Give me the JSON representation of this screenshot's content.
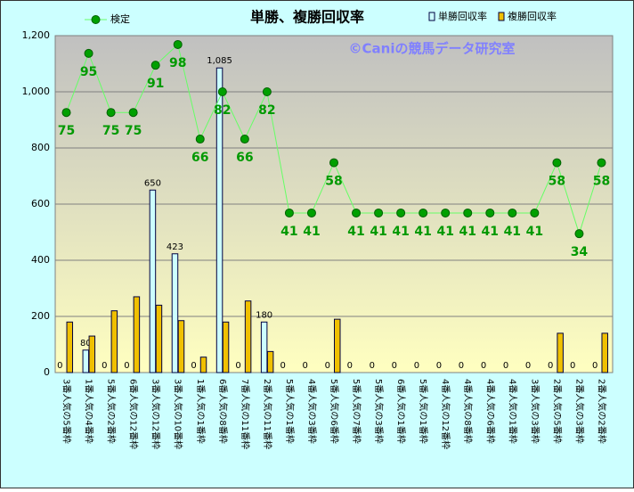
{
  "chart_data": {
    "type": "bar",
    "title": "単勝、複勝回収率",
    "watermark": "©Caniの競馬データ研究室",
    "categories": [
      "3番人気の5番枠",
      "1番人気の4番枠",
      "5番人気の2番枠",
      "6番人気の12番枠",
      "3番人気の12番枠",
      "3番人気の10番枠",
      "1番人気の1番枠",
      "6番人気の8番枠",
      "7番人気の11番枠",
      "2番人気の11番枠",
      "5番人気の1番枠",
      "4番人気の3番枠",
      "5番人気の6番枠",
      "5番人気の7番枠",
      "5番人気の3番枠",
      "6番人気の1番枠",
      "5番人気の1番枠",
      "4番人気の12番枠",
      "4番人気の8番枠",
      "4番人気の6番枠",
      "4番人気の1番枠",
      "3番人気の3番枠",
      "2番人気の5番枠",
      "2番人気の3番枠",
      "2番人気の2番枠"
    ],
    "series": [
      {
        "name": "単勝回収率",
        "color": "#ccffff",
        "values": [
          0,
          80,
          0,
          0,
          650,
          423,
          0,
          1085,
          0,
          180,
          0,
          0,
          0,
          0,
          0,
          0,
          0,
          0,
          0,
          0,
          0,
          0,
          0,
          0,
          0
        ],
        "value_labels": [
          "0",
          "80",
          "0",
          "0",
          "650",
          "423",
          "0",
          "1,085",
          "0",
          "180",
          "0",
          "0",
          "0",
          "0",
          "0",
          "0",
          "0",
          "0",
          "0",
          "0",
          "0",
          "0",
          "0",
          "0",
          "0"
        ]
      },
      {
        "name": "複勝回収率",
        "color": "#f0c000",
        "values": [
          180,
          130,
          220,
          270,
          240,
          185,
          55,
          180,
          255,
          75,
          0,
          0,
          190,
          0,
          0,
          0,
          0,
          0,
          0,
          0,
          0,
          0,
          140,
          0,
          140
        ]
      },
      {
        "name": "検定",
        "type": "line",
        "axis": "y2",
        "color": "#66ff66",
        "values": [
          75,
          95,
          75,
          75,
          91,
          98,
          66,
          82,
          66,
          82,
          41,
          41,
          58,
          41,
          41,
          41,
          41,
          41,
          41,
          41,
          41,
          41,
          58,
          34,
          58
        ]
      }
    ],
    "ylim": [
      0,
      1200
    ],
    "yticks": [
      0,
      200,
      400,
      600,
      800,
      {
        "value": 1000,
        "label": "1,000"
      },
      {
        "value": 1200,
        "label": "1,200"
      }
    ],
    "y2lim": [
      -13,
      101
    ],
    "grid": true
  }
}
